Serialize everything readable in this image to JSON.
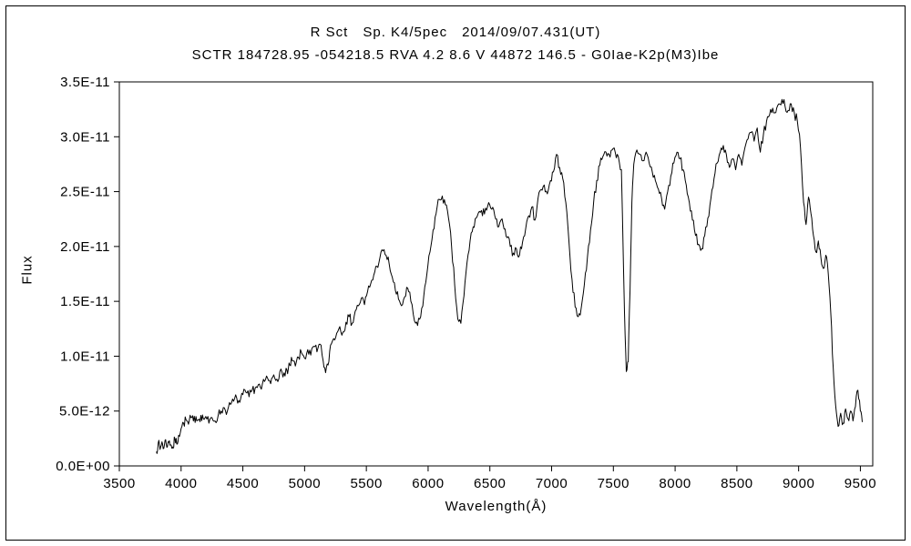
{
  "chart_data": {
    "type": "line",
    "title": "R Sct　Sp. K4/5pec　2014/09/07.431(UT)",
    "subtitle": "SCTR 184728.95 -054218.5 RVA 4.2 8.6 V 44872 146.5 - G0Iae-K2p(M3)Ibe",
    "xlabel": "Wavelength(Å)",
    "ylabel": "Flux",
    "xlim": [
      3500,
      9600
    ],
    "ylim_1e12": [
      0,
      35
    ],
    "grid": false,
    "legend": "none",
    "line_color": "#000000",
    "background_color": "#ffffff",
    "x_ticks": [
      3500,
      4000,
      4500,
      5000,
      5500,
      6000,
      6500,
      7000,
      7500,
      8000,
      8500,
      9000,
      9500
    ],
    "x_tick_labels": [
      "3500",
      "4000",
      "4500",
      "5000",
      "5500",
      "6000",
      "6500",
      "7000",
      "7500",
      "8000",
      "8500",
      "9000",
      "9500"
    ],
    "y_ticks_1e12": [
      0,
      5,
      10,
      15,
      20,
      25,
      30,
      35
    ],
    "y_tick_labels": [
      "0.0E+00",
      "5.0E-12",
      "1.0E-11",
      "1.5E-11",
      "2.0E-11",
      "2.5E-11",
      "3.0E-11",
      "3.5E-11"
    ],
    "y_value_scale": 1e-12,
    "noise": {
      "seed": 7,
      "amplitude_1e12": 0.45,
      "subdivisions": 3
    },
    "points_wavelength_flux1e12": [
      [
        3800,
        1.3
      ],
      [
        3815,
        2.1
      ],
      [
        3830,
        1.5
      ],
      [
        3845,
        2.2
      ],
      [
        3860,
        1.6
      ],
      [
        3875,
        2.4
      ],
      [
        3890,
        1.8
      ],
      [
        3905,
        2.3
      ],
      [
        3920,
        1.9
      ],
      [
        3935,
        1.6
      ],
      [
        3950,
        2.5
      ],
      [
        3965,
        2.0
      ],
      [
        3980,
        2.8
      ],
      [
        4000,
        3.4
      ],
      [
        4020,
        3.9
      ],
      [
        4040,
        4.2
      ],
      [
        4060,
        3.8
      ],
      [
        4080,
        4.4
      ],
      [
        4100,
        4.1
      ],
      [
        4120,
        4.5
      ],
      [
        4140,
        4.2
      ],
      [
        4160,
        4.6
      ],
      [
        4180,
        4.3
      ],
      [
        4200,
        4.5
      ],
      [
        4225,
        3.9
      ],
      [
        4250,
        4.4
      ],
      [
        4275,
        4.1
      ],
      [
        4300,
        4.6
      ],
      [
        4325,
        5.0
      ],
      [
        4350,
        5.3
      ],
      [
        4375,
        5.0
      ],
      [
        4400,
        5.6
      ],
      [
        4425,
        5.9
      ],
      [
        4450,
        6.2
      ],
      [
        4475,
        5.8
      ],
      [
        4500,
        6.5
      ],
      [
        4525,
        6.7
      ],
      [
        4550,
        6.3
      ],
      [
        4575,
        6.9
      ],
      [
        4600,
        7.1
      ],
      [
        4625,
        7.4
      ],
      [
        4650,
        7.0
      ],
      [
        4675,
        7.7
      ],
      [
        4700,
        8.0
      ],
      [
        4725,
        7.5
      ],
      [
        4750,
        8.3
      ],
      [
        4775,
        7.9
      ],
      [
        4800,
        8.6
      ],
      [
        4825,
        8.1
      ],
      [
        4850,
        8.9
      ],
      [
        4862,
        8.4
      ],
      [
        4880,
        9.2
      ],
      [
        4900,
        9.6
      ],
      [
        4925,
        9.1
      ],
      [
        4950,
        9.9
      ],
      [
        4975,
        10.3
      ],
      [
        5000,
        9.8
      ],
      [
        5025,
        10.6
      ],
      [
        5050,
        10.1
      ],
      [
        5075,
        10.9
      ],
      [
        5100,
        10.4
      ],
      [
        5125,
        11.1
      ],
      [
        5150,
        9.6
      ],
      [
        5170,
        8.5
      ],
      [
        5190,
        9.2
      ],
      [
        5210,
        11.0
      ],
      [
        5235,
        11.6
      ],
      [
        5260,
        12.1
      ],
      [
        5285,
        12.7
      ],
      [
        5310,
        12.2
      ],
      [
        5335,
        13.1
      ],
      [
        5360,
        13.6
      ],
      [
        5385,
        13.0
      ],
      [
        5410,
        14.1
      ],
      [
        5435,
        14.6
      ],
      [
        5460,
        15.3
      ],
      [
        5485,
        14.7
      ],
      [
        5510,
        15.9
      ],
      [
        5535,
        16.6
      ],
      [
        5560,
        17.4
      ],
      [
        5585,
        18.2
      ],
      [
        5610,
        19.0
      ],
      [
        5635,
        19.6
      ],
      [
        5660,
        19.2
      ],
      [
        5685,
        18.4
      ],
      [
        5710,
        17.2
      ],
      [
        5735,
        16.0
      ],
      [
        5760,
        15.2
      ],
      [
        5785,
        14.6
      ],
      [
        5810,
        15.4
      ],
      [
        5835,
        16.2
      ],
      [
        5860,
        15.0
      ],
      [
        5890,
        13.2
      ],
      [
        5915,
        12.8
      ],
      [
        5940,
        13.6
      ],
      [
        5965,
        15.5
      ],
      [
        5990,
        17.5
      ],
      [
        6015,
        19.5
      ],
      [
        6040,
        21.5
      ],
      [
        6065,
        23.0
      ],
      [
        6090,
        24.3
      ],
      [
        6115,
        24.6
      ],
      [
        6140,
        23.8
      ],
      [
        6165,
        22.6
      ],
      [
        6190,
        20.0
      ],
      [
        6215,
        16.5
      ],
      [
        6240,
        13.4
      ],
      [
        6265,
        13.0
      ],
      [
        6290,
        15.5
      ],
      [
        6315,
        18.5
      ],
      [
        6340,
        20.5
      ],
      [
        6365,
        21.8
      ],
      [
        6390,
        22.6
      ],
      [
        6415,
        23.2
      ],
      [
        6440,
        22.8
      ],
      [
        6465,
        23.5
      ],
      [
        6490,
        24.0
      ],
      [
        6515,
        23.4
      ],
      [
        6540,
        22.8
      ],
      [
        6563,
        21.8
      ],
      [
        6590,
        22.4
      ],
      [
        6615,
        21.6
      ],
      [
        6640,
        20.8
      ],
      [
        6665,
        20.0
      ],
      [
        6690,
        19.4
      ],
      [
        6715,
        19.8
      ],
      [
        6740,
        19.2
      ],
      [
        6765,
        20.4
      ],
      [
        6790,
        21.6
      ],
      [
        6815,
        22.8
      ],
      [
        6840,
        23.6
      ],
      [
        6865,
        22.4
      ],
      [
        6890,
        24.4
      ],
      [
        6915,
        25.2
      ],
      [
        6940,
        25.6
      ],
      [
        6965,
        24.8
      ],
      [
        6990,
        26.0
      ],
      [
        7015,
        26.8
      ],
      [
        7040,
        28.4
      ],
      [
        7065,
        27.2
      ],
      [
        7090,
        26.2
      ],
      [
        7115,
        24.0
      ],
      [
        7140,
        20.5
      ],
      [
        7165,
        17.0
      ],
      [
        7190,
        14.5
      ],
      [
        7215,
        13.6
      ],
      [
        7240,
        14.4
      ],
      [
        7265,
        16.5
      ],
      [
        7290,
        19.0
      ],
      [
        7315,
        21.5
      ],
      [
        7340,
        24.0
      ],
      [
        7365,
        26.0
      ],
      [
        7390,
        27.4
      ],
      [
        7415,
        28.2
      ],
      [
        7440,
        28.6
      ],
      [
        7465,
        28.4
      ],
      [
        7490,
        28.8
      ],
      [
        7515,
        28.6
      ],
      [
        7540,
        28.2
      ],
      [
        7565,
        27.0
      ],
      [
        7590,
        14.0
      ],
      [
        7605,
        8.6
      ],
      [
        7620,
        9.5
      ],
      [
        7635,
        16.0
      ],
      [
        7650,
        24.0
      ],
      [
        7665,
        27.5
      ],
      [
        7690,
        28.8
      ],
      [
        7715,
        28.4
      ],
      [
        7740,
        27.8
      ],
      [
        7765,
        28.6
      ],
      [
        7790,
        27.6
      ],
      [
        7815,
        26.8
      ],
      [
        7840,
        26.0
      ],
      [
        7865,
        25.2
      ],
      [
        7890,
        24.4
      ],
      [
        7915,
        23.4
      ],
      [
        7940,
        25.0
      ],
      [
        7965,
        26.4
      ],
      [
        7990,
        27.6
      ],
      [
        8015,
        28.6
      ],
      [
        8040,
        28.0
      ],
      [
        8065,
        27.0
      ],
      [
        8090,
        25.6
      ],
      [
        8115,
        24.0
      ],
      [
        8140,
        22.4
      ],
      [
        8165,
        21.0
      ],
      [
        8190,
        20.2
      ],
      [
        8215,
        19.8
      ],
      [
        8240,
        21.0
      ],
      [
        8265,
        22.6
      ],
      [
        8290,
        24.4
      ],
      [
        8315,
        26.2
      ],
      [
        8340,
        27.6
      ],
      [
        8365,
        28.6
      ],
      [
        8390,
        29.2
      ],
      [
        8415,
        28.4
      ],
      [
        8440,
        27.2
      ],
      [
        8465,
        28.0
      ],
      [
        8490,
        27.0
      ],
      [
        8515,
        28.4
      ],
      [
        8540,
        27.4
      ],
      [
        8565,
        29.0
      ],
      [
        8590,
        29.8
      ],
      [
        8615,
        30.4
      ],
      [
        8640,
        29.6
      ],
      [
        8665,
        30.8
      ],
      [
        8690,
        28.6
      ],
      [
        8715,
        30.2
      ],
      [
        8740,
        31.4
      ],
      [
        8765,
        32.0
      ],
      [
        8790,
        32.6
      ],
      [
        8815,
        32.2
      ],
      [
        8840,
        33.0
      ],
      [
        8865,
        33.4
      ],
      [
        8890,
        32.8
      ],
      [
        8915,
        32.4
      ],
      [
        8940,
        33.0
      ],
      [
        8965,
        32.2
      ],
      [
        8990,
        31.4
      ],
      [
        9015,
        29.0
      ],
      [
        9040,
        24.0
      ],
      [
        9060,
        22.0
      ],
      [
        9080,
        24.5
      ],
      [
        9100,
        23.0
      ],
      [
        9120,
        21.0
      ],
      [
        9140,
        19.5
      ],
      [
        9160,
        20.5
      ],
      [
        9180,
        19.0
      ],
      [
        9200,
        18.0
      ],
      [
        9220,
        19.2
      ],
      [
        9240,
        17.5
      ],
      [
        9260,
        14.0
      ],
      [
        9280,
        9.0
      ],
      [
        9300,
        5.5
      ],
      [
        9320,
        3.6
      ],
      [
        9340,
        4.8
      ],
      [
        9360,
        3.9
      ],
      [
        9380,
        5.2
      ],
      [
        9400,
        4.3
      ],
      [
        9420,
        5.0
      ],
      [
        9440,
        4.1
      ],
      [
        9460,
        5.4
      ],
      [
        9480,
        6.9
      ],
      [
        9500,
        5.0
      ],
      [
        9515,
        4.0
      ]
    ]
  }
}
